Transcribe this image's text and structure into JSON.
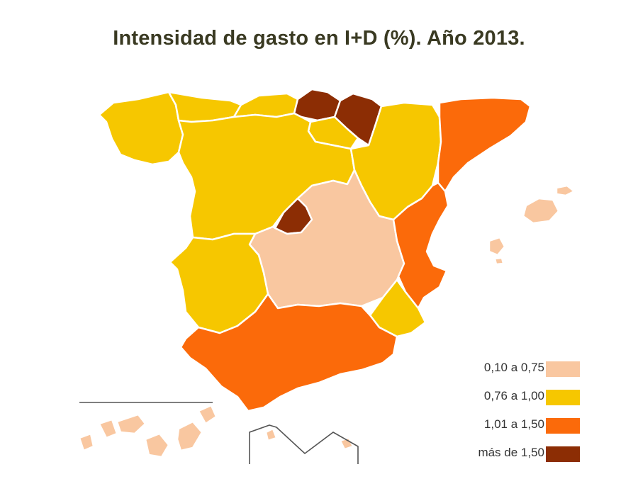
{
  "title": "Intensidad de gasto en I+D (%). Año 2013.",
  "legend": [
    {
      "label": "0,10 a 0,75",
      "color": "#f9c7a0"
    },
    {
      "label": "0,76 a 1,00",
      "color": "#f6c700"
    },
    {
      "label": "1,01 a 1,50",
      "color": "#fb6a0a"
    },
    {
      "label": "más de 1,50",
      "color": "#8c2d04"
    }
  ],
  "colors": {
    "border": "#ffffff",
    "inset_lines": "#555555"
  }
}
